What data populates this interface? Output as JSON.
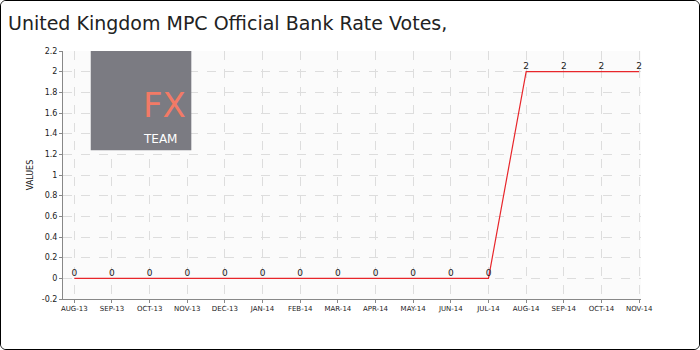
{
  "chart_data": {
    "type": "line",
    "title": "United Kingdom MPC Official Bank Rate Votes,",
    "y_label": "VALUES",
    "categories": [
      "AUG-13",
      "SEP-13",
      "OCT-13",
      "NOV-13",
      "DEC-13",
      "JAN-14",
      "FEB-14",
      "MAR-14",
      "APR-14",
      "MAY-14",
      "JUN-14",
      "JUL-14",
      "AUG-14",
      "SEP-14",
      "OCT-14",
      "NOV-14"
    ],
    "values": [
      0,
      0,
      0,
      0,
      0,
      0,
      0,
      0,
      0,
      0,
      0,
      0,
      2,
      2,
      2,
      2
    ],
    "color": "#e8262b",
    "ylim": [
      -0.2,
      2.2
    ],
    "yticks": [
      -0.2,
      0,
      0.2,
      0.4,
      0.6,
      0.8,
      1,
      1.2,
      1.4,
      1.6,
      1.8,
      2,
      2.2
    ],
    "grid": true,
    "data_labels": true,
    "annotations": [
      "FX",
      "TEAM"
    ]
  }
}
